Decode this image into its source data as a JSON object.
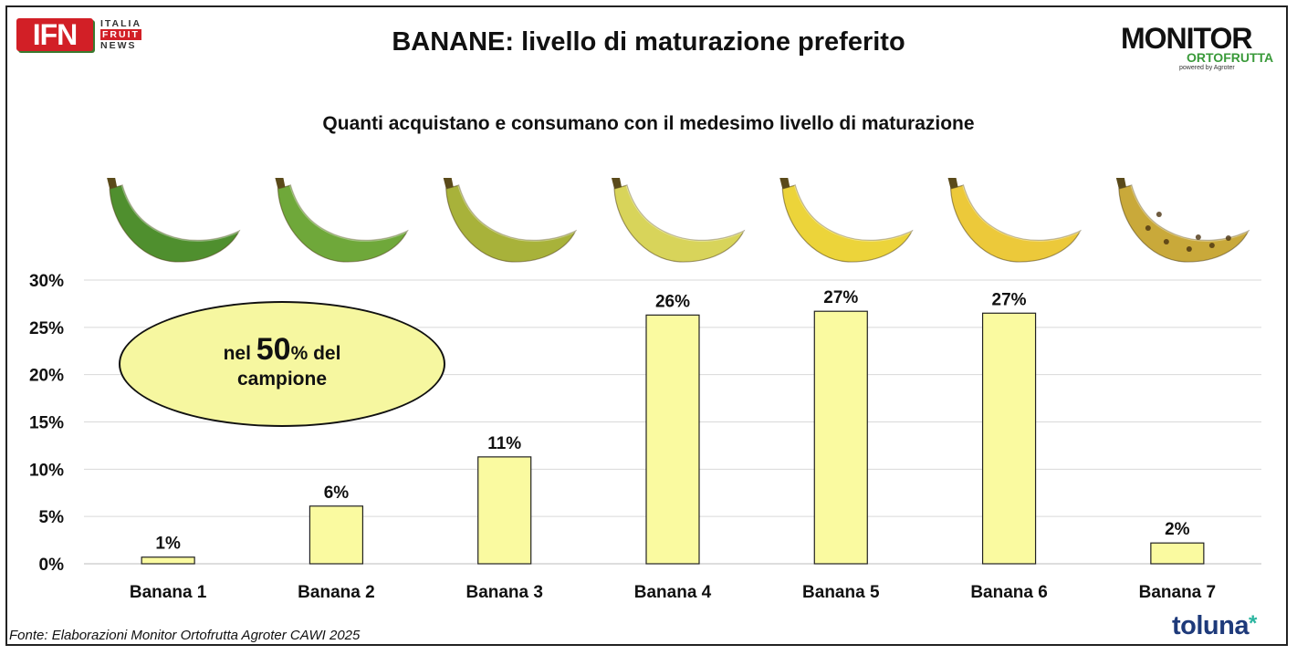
{
  "header": {
    "ifn_logo": {
      "mark": "IFN",
      "line1": "ITALIA",
      "line2": "FRUIT",
      "line3": "NEWS"
    },
    "title": "BANANE: livello di maturazione preferito",
    "monitor_logo": {
      "word": "MONITOR",
      "sub": "ORTOFRUTTA",
      "powered": "powered by Agroter"
    }
  },
  "subtitle": "Quanti acquistano e consumano con il medesimo livello di maturazione",
  "callout": {
    "prefix": "nel ",
    "big": "50",
    "suffix": "% del",
    "line2": "campione"
  },
  "footer": {
    "source": "Fonte: Elaborazioni Monitor Ortofrutta Agroter CAWI 2025",
    "brand": "toluna",
    "brand_mark": "*"
  },
  "colors": {
    "bar": "#fafaa0",
    "bar_stroke": "#222222",
    "grid": "#d9d9d9",
    "callout_fill": "#f6f7a0"
  },
  "chart_data": {
    "type": "bar",
    "categories": [
      "Banana 1",
      "Banana 2",
      "Banana 3",
      "Banana 4",
      "Banana 5",
      "Banana 6",
      "Banana 7"
    ],
    "values": [
      0.7,
      6.1,
      11.3,
      26.3,
      26.7,
      26.5,
      2.2
    ],
    "data_labels": [
      "1%",
      "6%",
      "11%",
      "26%",
      "27%",
      "27%",
      "2%"
    ],
    "ylim": [
      0,
      30
    ],
    "yticks": [
      "0%",
      "5%",
      "10%",
      "15%",
      "20%",
      "25%",
      "30%"
    ],
    "ytick_values": [
      0,
      5,
      10,
      15,
      20,
      25,
      30
    ],
    "grid": true,
    "banana_ripeness_colors": [
      "#4f8f2e",
      "#6fa83a",
      "#a8b23a",
      "#d8d45a",
      "#ecd43a",
      "#ecc93a",
      "#c9a93a"
    ]
  }
}
